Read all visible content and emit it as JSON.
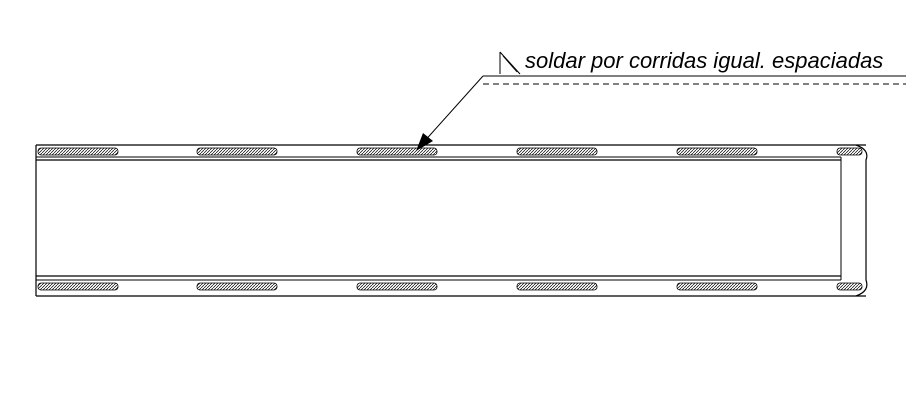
{
  "annotation": {
    "text": "soldar por corridas igual. espaciadas",
    "weld_symbol": "fillet-weld-symbol"
  },
  "colors": {
    "line": "#000000",
    "background": "#ffffff"
  }
}
